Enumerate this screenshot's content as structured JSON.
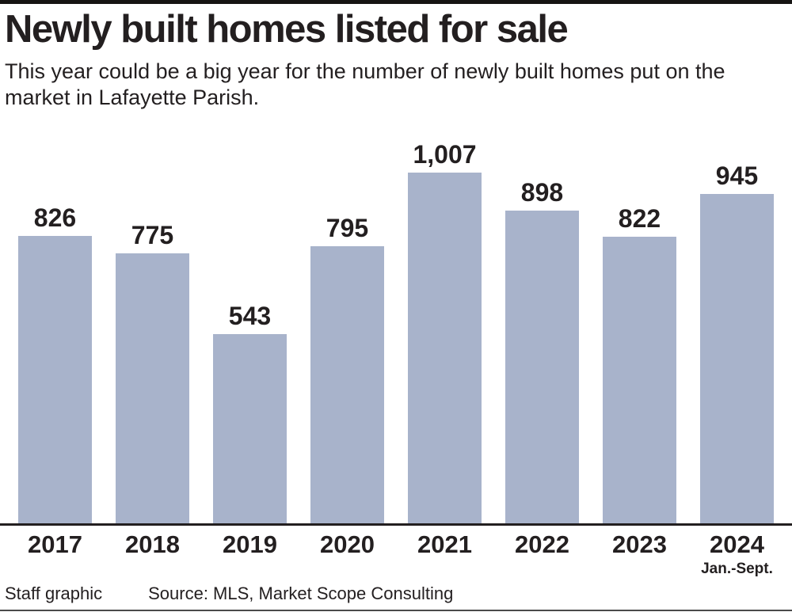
{
  "chart_data": {
    "type": "bar",
    "title": "Newly built homes listed for sale",
    "subtitle": "This year could be a big year for the number of newly built homes put on the market in Lafayette Parish.",
    "categories": [
      "2017",
      "2018",
      "2019",
      "2020",
      "2021",
      "2022",
      "2023",
      "2024"
    ],
    "values": [
      826,
      775,
      543,
      795,
      1007,
      898,
      822,
      945
    ],
    "value_labels": [
      "826",
      "775",
      "543",
      "795",
      "1,007",
      "898",
      "822",
      "945"
    ],
    "category_sublabels": [
      "",
      "",
      "",
      "",
      "",
      "",
      "",
      "Jan.-Sept."
    ],
    "xlabel": "",
    "ylabel": "",
    "ylim": [
      0,
      1007
    ],
    "grid": false,
    "legend": false,
    "bar_color": "#a8b3cb",
    "text_color": "#231f20"
  },
  "footer": {
    "credit": "Staff graphic",
    "source": "Source: MLS, Market Scope Consulting"
  }
}
